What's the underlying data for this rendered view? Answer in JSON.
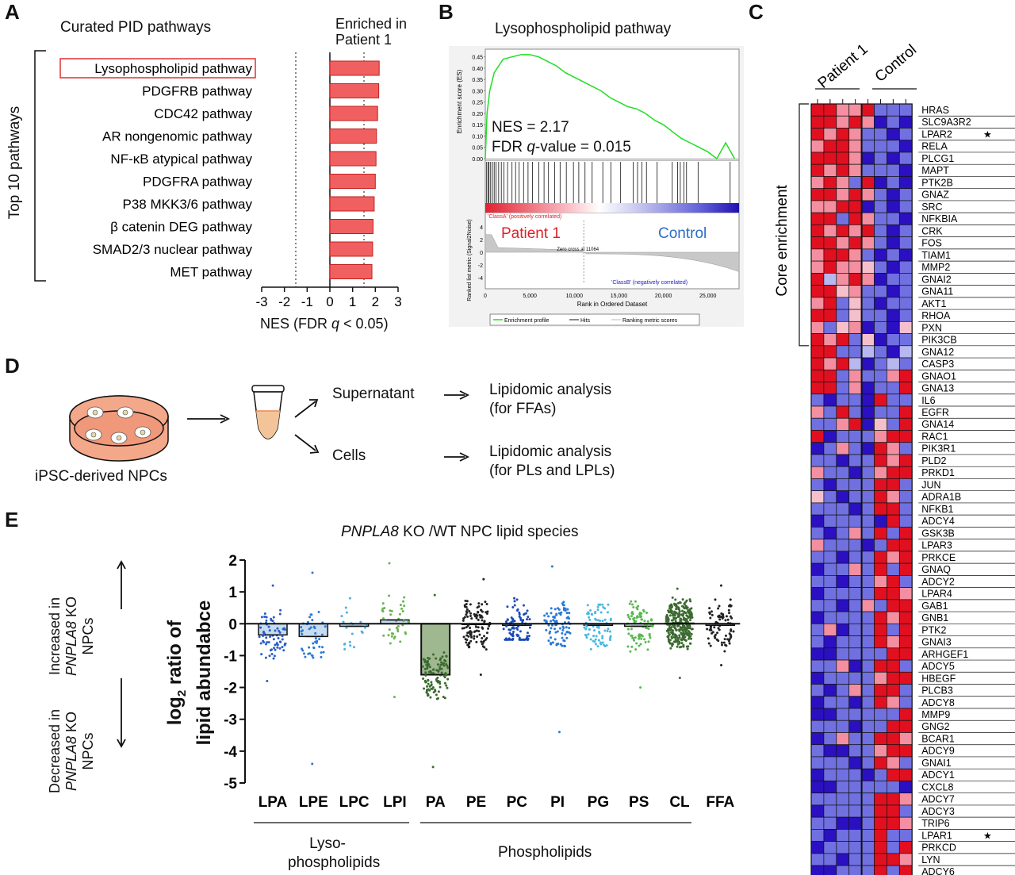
{
  "panel_letters": {
    "a": "A",
    "b": "B",
    "c": "C",
    "d": "D",
    "e": "E"
  },
  "panelA": {
    "title": "Curated PID pathways",
    "enriched_label_line1": "Enriched in",
    "enriched_label_line2": "Patient 1",
    "bracket_label": "Top 10 pathways",
    "xlabel": "NES (FDR q < 0.05)",
    "xlabel_prefix": "NES (FDR ",
    "xlabel_q": "q",
    "xlabel_suffix": " < 0.05)",
    "highlight_color": "#e03030",
    "bar_color": "#f06060",
    "chart_data": {
      "type": "bar",
      "orientation": "horizontal",
      "categories": [
        "Lysophospholipid pathway",
        "PDGFRB pathway",
        "CDC42 pathway",
        "AR nongenomic pathway",
        "NF-κB atypical pathway",
        "PDGFRA pathway",
        "P38 MKK3/6 pathway",
        "β catenin DEG pathway",
        "SMAD2/3 nuclear pathway",
        "MET pathway"
      ],
      "values": [
        2.17,
        2.15,
        2.1,
        2.05,
        2.03,
        2.0,
        1.95,
        1.9,
        1.88,
        1.85
      ],
      "xlim": [
        -3,
        3
      ],
      "xticks": [
        "-3",
        "-2",
        "-1",
        "0",
        "1",
        "2",
        "3"
      ],
      "threshold_lines": [
        -1.5,
        1.5
      ]
    }
  },
  "panelB": {
    "title": "Lysophospholipid pathway",
    "es_ylabel": "Enrichment score (ES)",
    "rank_ylabel": "Ranked list metric (Signal2Noise)",
    "nes_text": "NES = 2.17",
    "fdr_prefix": "FDR ",
    "fdr_q": "q",
    "fdr_suffix": "-value = 0.015",
    "classA": "'ClassA' (positively correlated)",
    "classB": "'ClassB' (negatively correlated)",
    "patient_label": "Patient 1",
    "control_label": "Control",
    "zero_cross": "Zero cross at 11064",
    "xlabel": "Rank in Ordered Dataset",
    "legend": [
      "Enrichment profile",
      "Hits",
      "Ranking metric scores"
    ],
    "es_ticks": [
      "0.45",
      "0.40",
      "0.35",
      "0.30",
      "0.25",
      "0.20",
      "0.15",
      "0.10",
      "0.05",
      "0.00"
    ],
    "rank_ticks": [
      "4",
      "2",
      "0",
      "-2",
      "-4"
    ],
    "x_ticks": [
      "0",
      "5,000",
      "10,000",
      "15,000",
      "20,000",
      "25,000"
    ],
    "chart_data": {
      "type": "line",
      "x": [
        0,
        200,
        500,
        1000,
        2000,
        3000,
        4000,
        5000,
        6000,
        7000,
        8000,
        9000,
        10000,
        11000,
        12000,
        13000,
        14000,
        15000,
        16000,
        17000,
        18000,
        19000,
        20000,
        21000,
        22000,
        23000,
        24000,
        25000,
        26000,
        27000,
        28000
      ],
      "es": [
        0.0,
        0.2,
        0.3,
        0.38,
        0.44,
        0.45,
        0.46,
        0.46,
        0.45,
        0.43,
        0.41,
        0.38,
        0.36,
        0.34,
        0.32,
        0.3,
        0.27,
        0.25,
        0.23,
        0.22,
        0.2,
        0.17,
        0.15,
        0.12,
        0.09,
        0.07,
        0.05,
        0.03,
        0.0,
        0.07,
        0.0
      ],
      "ylim": [
        0,
        0.47
      ],
      "xlim": [
        0,
        28500
      ],
      "hit_ranks": [
        150,
        300,
        420,
        600,
        800,
        1000,
        1200,
        1500,
        1800,
        2100,
        2500,
        3000,
        3400,
        3800,
        4300,
        4800,
        5300,
        6000,
        6600,
        7100,
        7800,
        8400,
        9100,
        9900,
        10500,
        11200,
        12000,
        13200,
        14100,
        15200,
        16600,
        17100,
        17600,
        18100,
        19300,
        21000,
        21600,
        21900,
        22300,
        22600,
        23900,
        27500
      ]
    }
  },
  "panelC": {
    "group_patient": "Patient 1",
    "group_control": "Control",
    "core_label": "Core enrichment",
    "colors": {
      "red": "#e01020",
      "pink": "#f38fa0",
      "lightpink": "#f5c0cc",
      "lightblue": "#b8b8f0",
      "blue": "#7070e0",
      "darkblue": "#2a10c0"
    },
    "genes": [
      "HRAS",
      "SLC9A3R2",
      "LPAR2",
      "RELA",
      "PLCG1",
      "MAPT",
      "PTK2B",
      "GNAZ",
      "SRC",
      "NFKBIA",
      "CRK",
      "FOS",
      "TIAM1",
      "MMP2",
      "GNAI2",
      "GNA11",
      "AKT1",
      "RHOA",
      "PXN",
      "PIK3CB",
      "GNA12",
      "CASP3",
      "GNAO1",
      "GNA13",
      "IL6",
      "EGFR",
      "GNA14",
      "RAC1",
      "PIK3R1",
      "PLD2",
      "PRKD1",
      "JUN",
      "ADRA1B",
      "NFKB1",
      "ADCY4",
      "GSK3B",
      "LPAR3",
      "PRKCE",
      "GNAQ",
      "ADCY2",
      "LPAR4",
      "GAB1",
      "GNB1",
      "PTK2",
      "GNAI3",
      "ARHGEF1",
      "ADCY5",
      "HBEGF",
      "PLCB3",
      "ADCY8",
      "MMP9",
      "GNG2",
      "BCAR1",
      "ADCY9",
      "GNAI1",
      "ADCY1",
      "CXCL8",
      "ADCY7",
      "ADCY3",
      "TRIP6",
      "LPAR1",
      "PRKCD",
      "LYN",
      "ADCY6"
    ],
    "starred": [
      "LPAR2",
      "LPAR1"
    ],
    "star_glyph": "★",
    "heatmap_rows": [
      "rrpprbbbd",
      "rrprpdbdb",
      "rprpbbdbd",
      "prrpbbbdb",
      "rrrpdbdbd",
      "rprpbbbdb",
      "prpbrdbdb",
      "rrprpbdbb",
      "pprrdbdbd",
      "rrbrpbbdb",
      "rprprbdbb",
      "rrprpbdbd",
      "prrpbdbdb",
      "prpplbdbb",
      "rlprpdbbd",
      "rrlpbbdbl",
      "prblbdbbl",
      "rrblbbdbl",
      "pblpdbdlb",
      "rprbldbbl",
      "rrbblbdlp",
      "rprldblbp",
      "rrbpbbprl",
      "rrbpdbbrp",
      "bdbbdrbbl",
      "pbrbdbbrp",
      "bbprdlbrb",
      "rdbbbprrb",
      "dbpbdrpbr",
      "bbdbbrprl",
      "pbbdbprrb",
      "bdbbbrrbp",
      "lbdbbrpbr",
      "bbbdbrrbp",
      "dbbbbdrbp",
      "bdbpbrbrl",
      "pbbbdbrrb",
      "bbdbbrprb",
      "dbbpbrbrp",
      "bbdbbprbr",
      "dbbbbrrpb",
      "bbdbpbrrb",
      "dbbbbrprb",
      "bpdbbrbrp",
      "bdbbbrprl",
      "ddbbbbrrp",
      "bbpdbrrbr",
      "dbbbbprrb",
      "bdbpbrrbr",
      "dbbdbrpbr",
      "ddbbbbbrr",
      "bbbdbbrrp",
      "dbpbbrrpb",
      "bddbbprrb",
      "bbbdbrpbr",
      "dbbbdbrrp",
      "ddbbbbbdb",
      "bbbbbrrpr",
      "dbbbbrrbb",
      "bbddbrrpb",
      "bdbbbrbbr",
      "dbbbbrbrp",
      "bbdbbrrpb",
      "ddbbbrbrb"
    ]
  },
  "panelD": {
    "cells_label": "iPSC-derived NPCs",
    "supernatant": "Supernatant",
    "cells": "Cells",
    "lipid1_line1": "Lipidomic analysis",
    "lipid1_line2": "(for FFAs)",
    "lipid2_line1": "Lipidomic analysis",
    "lipid2_line2": "(for PLs and LPLs)",
    "dish_color": "#f4a88a",
    "tube_color": "#f3c49a"
  },
  "panelE": {
    "title_italic": "PNPLA8",
    "title_rest": " KO /WT NPC lipid species",
    "increased_line1": "Increased in",
    "increased_gene": "PNPLA8",
    "increased_line2b": " KO",
    "increased_line3": "NPCs",
    "decreased_line1": "Decreased in",
    "decreased_gene": "PNPLA8",
    "decreased_line2b": " KO",
    "decreased_line3": "NPCs",
    "ylabel_line1": "log",
    "ylabel_sub": "2",
    "ylabel_line1b": " ratio of",
    "ylabel_line2": "lipid abundabce",
    "group_lyso_line1": "Lyso-",
    "group_lyso_line2": "phospholipids",
    "group_phospho": "Phospholipids",
    "yticks": [
      "2",
      "1",
      "0",
      "-1",
      "-2",
      "-3",
      "-4",
      "-5"
    ],
    "chart_data": {
      "type": "bar",
      "categories": [
        "LPA",
        "LPE",
        "LPC",
        "LPI",
        "PA",
        "PE",
        "PC",
        "PI",
        "PG",
        "PS",
        "CL",
        "FFA"
      ],
      "values": [
        -0.35,
        -0.4,
        -0.08,
        0.12,
        -1.6,
        -0.02,
        -0.05,
        0.0,
        -0.05,
        -0.08,
        0.02,
        -0.05
      ],
      "dot_colors": [
        "#2a5cc8",
        "#2a78d8",
        "#4ab0e8",
        "#6ab450",
        "#3c6a30",
        "#222222",
        "#1c4ab8",
        "#2a78d8",
        "#4ab8e0",
        "#5ab850",
        "#3c6a30",
        "#222222"
      ],
      "dot_counts": [
        70,
        45,
        20,
        40,
        110,
        110,
        90,
        90,
        75,
        85,
        300,
        80
      ],
      "dot_min": [
        -1.8,
        -4.4,
        -0.8,
        -2.3,
        -4.5,
        -1.6,
        -0.5,
        -3.4,
        -0.8,
        -2.0,
        -1.7,
        -1.3
      ],
      "dot_max": [
        1.2,
        1.6,
        0.8,
        1.9,
        0.9,
        1.4,
        0.8,
        1.8,
        0.6,
        0.7,
        1.1,
        1.2
      ],
      "ylim": [
        -5,
        2
      ]
    }
  }
}
